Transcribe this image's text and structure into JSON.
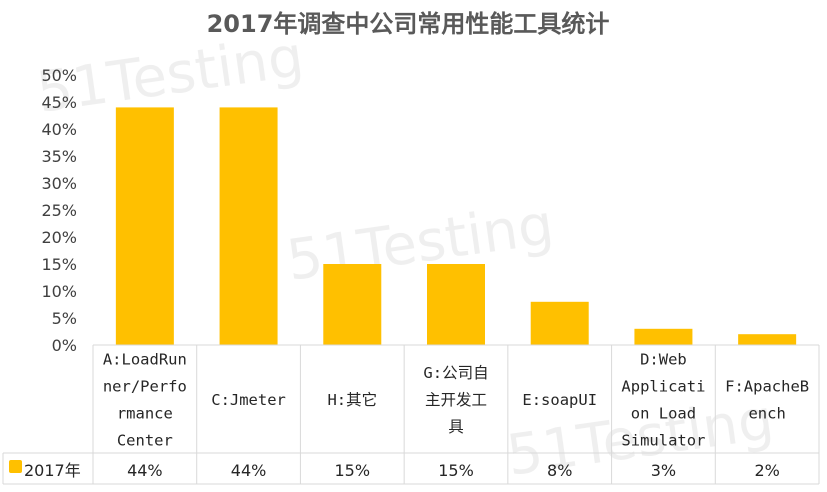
{
  "chart_data": {
    "type": "bar",
    "title": "2017年调查中公司常用性能工具统计",
    "categories": [
      [
        "A:LoadRun",
        "ner/Perfo",
        "rmance",
        "Center"
      ],
      [
        "C:Jmeter"
      ],
      [
        "H:其它"
      ],
      [
        "G:公司自",
        "主开发工",
        "具"
      ],
      [
        "E:soapUI"
      ],
      [
        "D:Web",
        "Applicati",
        "on Load",
        "Simulator"
      ],
      [
        "F:ApacheB",
        "ench"
      ]
    ],
    "series": [
      {
        "name": "2017年",
        "values": [
          44,
          44,
          15,
          15,
          8,
          3,
          2
        ],
        "labels": [
          "44%",
          "44%",
          "15%",
          "15%",
          "8%",
          "3%",
          "2%"
        ],
        "color": "#FFC000"
      }
    ],
    "unit": "%",
    "ylim": [
      0,
      50
    ],
    "yticks": [
      "0%",
      "5%",
      "10%",
      "15%",
      "20%",
      "25%",
      "30%",
      "35%",
      "40%",
      "45%",
      "50%"
    ],
    "grid": false,
    "legend": "data-table"
  },
  "watermark": "51Testing"
}
